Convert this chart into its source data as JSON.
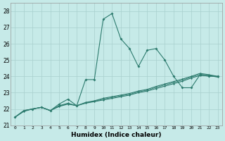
{
  "xlabel": "Humidex (Indice chaleur)",
  "ylabel": "",
  "background_color": "#c6eae8",
  "grid_color": "#a8d0ce",
  "line_color": "#2d7b6e",
  "xlim": [
    -0.5,
    23.5
  ],
  "ylim": [
    21.0,
    28.5
  ],
  "yticks": [
    21,
    22,
    23,
    24,
    25,
    26,
    27,
    28
  ],
  "xticks": [
    0,
    1,
    2,
    3,
    4,
    5,
    6,
    7,
    8,
    9,
    10,
    11,
    12,
    13,
    14,
    15,
    16,
    17,
    18,
    19,
    20,
    21,
    22,
    23
  ],
  "series1_x": [
    0,
    1,
    2,
    3,
    4,
    5,
    6,
    7,
    8,
    9,
    10,
    11,
    12,
    13,
    14,
    15,
    16,
    17,
    18,
    19,
    20,
    21,
    22,
    23
  ],
  "series1": [
    21.5,
    21.9,
    22.0,
    22.1,
    21.9,
    22.3,
    22.6,
    22.2,
    23.8,
    23.8,
    27.5,
    27.85,
    26.3,
    25.7,
    24.6,
    25.6,
    25.7,
    25.0,
    24.0,
    23.3,
    23.3,
    24.1,
    24.0,
    24.0
  ],
  "series2_x": [
    0,
    1,
    2,
    3,
    4,
    5,
    6,
    7,
    8,
    9,
    10,
    11,
    12,
    13,
    14,
    15,
    16,
    17,
    18,
    19,
    20,
    21,
    22,
    23
  ],
  "series2": [
    21.5,
    21.85,
    22.0,
    22.1,
    21.9,
    22.15,
    22.3,
    22.2,
    22.35,
    22.45,
    22.55,
    22.65,
    22.75,
    22.85,
    23.0,
    23.1,
    23.25,
    23.4,
    23.55,
    23.7,
    23.9,
    24.05,
    24.05,
    23.95
  ],
  "series3_x": [
    0,
    1,
    2,
    3,
    4,
    5,
    6,
    7,
    8,
    9,
    10,
    11,
    12,
    13,
    14,
    15,
    16,
    17,
    18,
    19,
    20,
    21,
    22,
    23
  ],
  "series3": [
    21.5,
    21.9,
    22.0,
    22.1,
    21.9,
    22.2,
    22.35,
    22.2,
    22.4,
    22.5,
    22.65,
    22.75,
    22.85,
    22.95,
    23.1,
    23.2,
    23.38,
    23.53,
    23.68,
    23.83,
    24.0,
    24.18,
    24.1,
    24.0
  ],
  "series4_x": [
    0,
    1,
    2,
    3,
    4,
    5,
    6,
    7,
    8,
    9,
    10,
    11,
    12,
    13,
    14,
    15,
    16,
    17,
    18,
    19,
    20,
    21,
    22,
    23
  ],
  "series4": [
    21.5,
    21.88,
    22.0,
    22.1,
    21.9,
    22.18,
    22.32,
    22.2,
    22.37,
    22.47,
    22.6,
    22.7,
    22.8,
    22.9,
    23.05,
    23.15,
    23.32,
    23.47,
    23.62,
    23.77,
    23.95,
    24.12,
    24.08,
    23.98
  ]
}
